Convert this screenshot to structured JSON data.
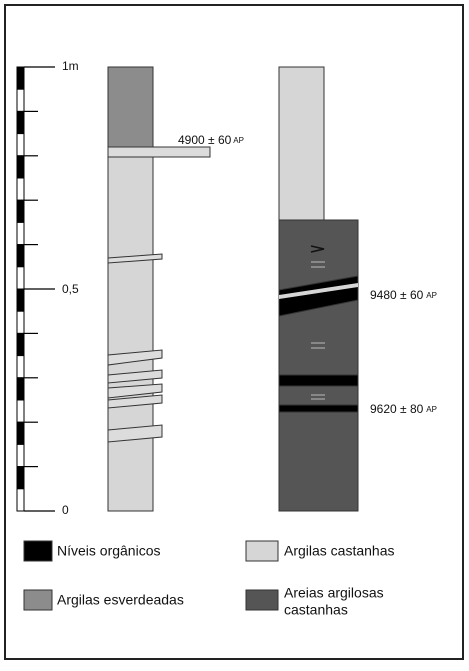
{
  "scale": {
    "top": "1m",
    "middle": "0,5",
    "bottom": "0"
  },
  "dates": [
    {
      "value": "4900 ± 60",
      "unit": "AP"
    },
    {
      "value": "9480 ± 60",
      "unit": "AP"
    },
    {
      "value": "9620 ± 80",
      "unit": "AP"
    }
  ],
  "legend": [
    {
      "label": "Níveis orgânicos"
    },
    {
      "label": "Argilas castanhas"
    },
    {
      "label": "Argilas esverdeadas"
    },
    {
      "label_lines": [
        "Areias argilosas",
        "castanhas"
      ]
    }
  ]
}
